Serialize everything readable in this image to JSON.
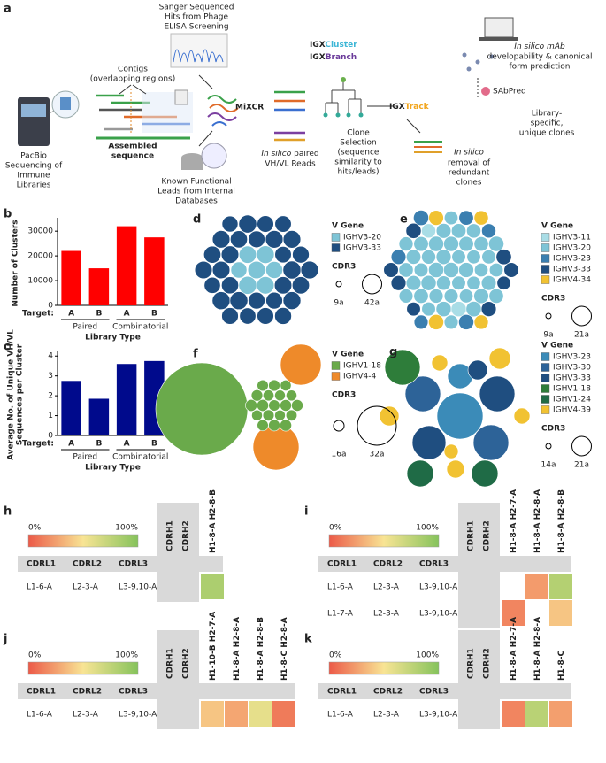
{
  "panel_a": {
    "label": "a",
    "sanger": [
      "Sanger Sequenced",
      "Hits from Phage",
      "ELISA Screening"
    ],
    "contigs": [
      "Contigs",
      "(overlapping regions)"
    ],
    "pacbio": [
      "PacBio",
      "Sequencing of",
      "Immune",
      "Libraries"
    ],
    "assembled": [
      "Assembled",
      "sequence"
    ],
    "known": [
      "Known Functional",
      "Leads from Internal",
      "Databases"
    ],
    "mixcr": "MiXCR",
    "paired": {
      "italic": "In silico",
      "rest": "paired",
      "line2": "VH/VL Reads"
    },
    "tools": [
      {
        "prefix": "IGX",
        "name": "Cluster",
        "color": "#3cb6d6"
      },
      {
        "prefix": "IGX",
        "name": "Branch",
        "color": "#6a3a9a"
      },
      {
        "prefix": "IGX",
        "name": "Track",
        "color": "#f2a51c"
      }
    ],
    "clone": [
      "Clone",
      "Selection",
      "(sequence",
      "similarity to",
      "hits/leads)"
    ],
    "removal": {
      "italic": "In silico",
      "lines": [
        "removal of",
        "redundant",
        "clones"
      ]
    },
    "mab": {
      "italic": "In silico",
      "rest": "mAb",
      "lines": [
        "developability & canonical",
        "form prediction"
      ]
    },
    "sabpred": "SAbPred",
    "library": [
      "Library-",
      "specific,",
      "unique clones"
    ]
  },
  "chart_data": [
    {
      "type": "bar",
      "panel": "b",
      "ylabel": "Number of Clusters",
      "xlabel": "Library Type",
      "target_label": "Target:",
      "categories": [
        "A",
        "B",
        "A",
        "B"
      ],
      "groups": [
        "Paired",
        "Combinatorial"
      ],
      "values": [
        22000,
        15000,
        32000,
        27500
      ],
      "color": "#ff0000",
      "ylim": [
        0,
        34000
      ],
      "yticks": [
        0,
        10000,
        20000,
        30000
      ]
    },
    {
      "type": "bar",
      "panel": "c",
      "ylabel": [
        "Average No. of Unique VH/VL",
        "Sequences per Cluster"
      ],
      "xlabel": "Library Type",
      "target_label": "Target:",
      "categories": [
        "A",
        "B",
        "A",
        "B"
      ],
      "groups": [
        "Paired",
        "Combinatorial"
      ],
      "values": [
        2.75,
        1.85,
        3.6,
        3.75
      ],
      "color": "#000a8c",
      "ylim": [
        0,
        4.1
      ],
      "yticks": [
        0,
        1,
        2,
        3,
        4
      ]
    }
  ],
  "bubble_panels": [
    {
      "panel": "d",
      "legend_title": "V Gene",
      "genes": [
        {
          "name": "IGHV3-20",
          "color": "#7ec4d6"
        },
        {
          "name": "IGHV3-33",
          "color": "#1f4e80"
        }
      ],
      "size_title": "CDR3",
      "size_labels": [
        "9a",
        "42a"
      ]
    },
    {
      "panel": "e",
      "legend_title": "V Gene",
      "genes": [
        {
          "name": "IGHV3-11",
          "color": "#a9dde6"
        },
        {
          "name": "IGHV3-20",
          "color": "#7ec4d6"
        },
        {
          "name": "IGHV3-23",
          "color": "#3b7fb0"
        },
        {
          "name": "IGHV3-33",
          "color": "#1f4e80"
        },
        {
          "name": "IGHV4-34",
          "color": "#f1c232"
        }
      ],
      "size_title": "CDR3",
      "size_labels": [
        "9a",
        "21a"
      ]
    },
    {
      "panel": "f",
      "legend_title": "V Gene",
      "genes": [
        {
          "name": "IGHV1-18",
          "color": "#6aaa4b"
        },
        {
          "name": "IGHV4-4",
          "color": "#ee8a2a"
        }
      ],
      "size_title": "CDR3",
      "size_labels": [
        "16a",
        "32a"
      ]
    },
    {
      "panel": "g",
      "legend_title": "V Gene",
      "genes": [
        {
          "name": "IGHV3-23",
          "color": "#3b8bb8"
        },
        {
          "name": "IGHV3-30",
          "color": "#2d6398"
        },
        {
          "name": "IGHV3-33",
          "color": "#1f4e80"
        },
        {
          "name": "IGHV1-18",
          "color": "#2e7d3a"
        },
        {
          "name": "IGHV1-24",
          "color": "#1f6b46"
        },
        {
          "name": "IGHV4-39",
          "color": "#f1c232"
        }
      ],
      "size_title": "CDR3",
      "size_labels": [
        "14a",
        "21a"
      ]
    }
  ],
  "heatmaps": [
    {
      "panel": "h",
      "scale_labels": [
        "0%",
        "100%"
      ],
      "heavy_headers": [
        "CDRH1",
        "CDRH2"
      ],
      "light_headers": [
        "CDRL1",
        "CDRL2",
        "CDRL3"
      ],
      "columns": [
        "H1-8-A H2-8-B"
      ],
      "rows": [
        [
          "L1-6-A",
          "L2-3-A",
          "L3-9,10-A"
        ]
      ],
      "values": [
        [
          85
        ]
      ]
    },
    {
      "panel": "i",
      "scale_labels": [
        "0%",
        "100%"
      ],
      "heavy_headers": [
        "CDRH1",
        "CDRH2"
      ],
      "light_headers": [
        "CDRL1",
        "CDRL2",
        "CDRL3"
      ],
      "columns": [
        "H1-8-A H2-7-A",
        "H1-8-A H2-8-A",
        "H1-8-A H2-8-B"
      ],
      "rows": [
        [
          "L1-6-A",
          "L2-3-A",
          "L3-9,10-A"
        ],
        [
          "L1-7-A",
          "L2-3-A",
          "L3-9,10-A"
        ]
      ],
      "values": [
        [
          null,
          30,
          82
        ],
        [
          20,
          null,
          45
        ]
      ]
    },
    {
      "panel": "j",
      "scale_labels": [
        "0%",
        "100%"
      ],
      "heavy_headers": [
        "CDRH1",
        "CDRH2"
      ],
      "light_headers": [
        "CDRL1",
        "CDRL2",
        "CDRL3"
      ],
      "columns": [
        "H1-10-B H2-7-A",
        "H1-8-A H2-8-A",
        "H1-8-A H2-8-B",
        "H1-8-C H2-8-A"
      ],
      "rows": [
        [
          "L1-6-A",
          "L2-3-A",
          "L3-9,10-A"
        ]
      ],
      "values": [
        [
          45,
          35,
          62,
          15
        ]
      ]
    },
    {
      "panel": "k",
      "scale_labels": [
        "0%",
        "100%"
      ],
      "heavy_headers": [
        "CDRH1",
        "CDRH2"
      ],
      "light_headers": [
        "CDRL1",
        "CDRL2",
        "CDRL3"
      ],
      "columns": [
        "H1-8-A H2-7-A",
        "H1-8-A H2-8-A",
        "H1-8-C"
      ],
      "rows": [
        [
          "L1-6-A",
          "L2-3-A",
          "L3-9,10-A"
        ]
      ],
      "values": [
        [
          20,
          80,
          32
        ]
      ]
    }
  ]
}
